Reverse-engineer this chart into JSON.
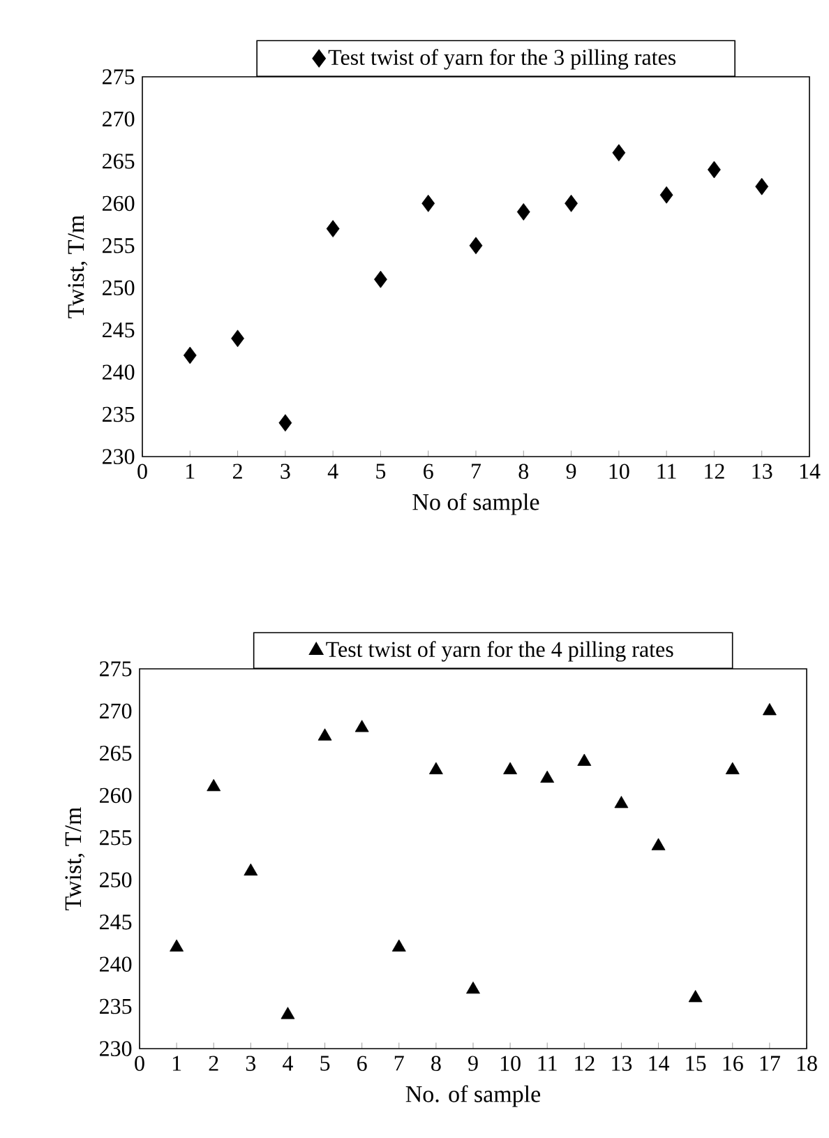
{
  "chart_data": [
    {
      "type": "scatter",
      "xlabel": "No of sample",
      "ylabel": "Twist, T/m",
      "legend": "top",
      "marker": "diamond",
      "xlim": [
        0,
        14
      ],
      "ylim": [
        230,
        275
      ],
      "xticks": [
        0,
        1,
        2,
        3,
        4,
        5,
        6,
        7,
        8,
        9,
        10,
        11,
        12,
        13,
        14
      ],
      "yticks": [
        230,
        235,
        240,
        245,
        250,
        255,
        260,
        265,
        270,
        275
      ],
      "series": [
        {
          "name": "Test twist of yarn for the 3 pilling rates",
          "color": "#000000",
          "x": [
            1,
            2,
            3,
            4,
            5,
            6,
            7,
            8,
            9,
            10,
            11,
            12,
            13
          ],
          "values": [
            242,
            244,
            234,
            257,
            251,
            260,
            255,
            259,
            260,
            266,
            261,
            264,
            262
          ]
        }
      ]
    },
    {
      "type": "scatter",
      "xlabel": "No. of sample",
      "ylabel": "Twist, T/m",
      "legend": "top",
      "marker": "triangle",
      "xlim": [
        0,
        18
      ],
      "ylim": [
        230,
        275
      ],
      "xticks": [
        0,
        1,
        2,
        3,
        4,
        5,
        6,
        7,
        8,
        9,
        10,
        11,
        12,
        13,
        14,
        15,
        16,
        17,
        18
      ],
      "yticks": [
        230,
        235,
        240,
        245,
        250,
        255,
        260,
        265,
        270,
        275
      ],
      "series": [
        {
          "name": "Test twist of yarn for the 4 pilling rates",
          "color": "#000000",
          "x": [
            1,
            2,
            3,
            4,
            5,
            6,
            7,
            8,
            9,
            10,
            11,
            12,
            13,
            14,
            15,
            16,
            17
          ],
          "values": [
            242,
            261,
            251,
            234,
            267,
            268,
            242,
            263,
            237,
            263,
            262,
            264,
            259,
            254,
            236,
            263,
            270
          ]
        }
      ]
    }
  ]
}
